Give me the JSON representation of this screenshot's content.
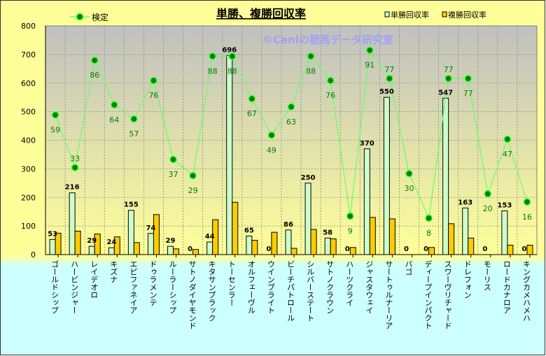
{
  "chart_data": {
    "type": "bar",
    "title": "単勝、複勝回収率",
    "watermark": "©Caniの競馬データ研究室",
    "ylim": [
      0,
      800
    ],
    "yticks": [
      0,
      100,
      200,
      300,
      400,
      500,
      600,
      700,
      800
    ],
    "y2lim": [
      -10,
      103
    ],
    "grid": true,
    "legend_placement": "top",
    "categories": [
      "ゴールドシップ",
      "ハービンジャー",
      "レイデオロ",
      "キズナ",
      "エピファネイア",
      "ドゥラメンテ",
      "ルーラーシップ",
      "サトノダイヤモンド",
      "キタサンブラック",
      "トーセンラー",
      "オルフェーヴル",
      "ウインブライト",
      "ビーチパトロール",
      "シルバーステート",
      "サトノクラウン",
      "ハーツクライ",
      "ジャスタウェイ",
      "サートゥルナーリア",
      "バゴ",
      "ディープインパクト",
      "スワーヴリチャード",
      "ドレフォン",
      "モーリス",
      "ロードカナロア",
      "キングカメハメハ"
    ],
    "series": [
      {
        "name": "単勝回収率",
        "type": "bar",
        "color": "#ccffcc",
        "values": [
          53,
          216,
          29,
          24,
          155,
          74,
          29,
          0,
          44,
          696,
          65,
          0,
          86,
          250,
          58,
          0,
          370,
          550,
          0,
          0,
          547,
          163,
          0,
          153,
          0
        ]
      },
      {
        "name": "複勝回収率",
        "type": "bar",
        "color": "#ffcc00",
        "values": [
          75,
          82,
          72,
          62,
          42,
          140,
          20,
          18,
          122,
          183,
          50,
          78,
          22,
          88,
          55,
          25,
          130,
          125,
          0,
          25,
          108,
          58,
          0,
          33,
          33
        ]
      },
      {
        "name": "検定",
        "type": "line",
        "color": "#66ff66",
        "values": [
          59,
          33,
          86,
          64,
          57,
          76,
          37,
          29,
          88,
          88,
          67,
          49,
          63,
          88,
          76,
          9,
          91,
          77,
          30,
          8,
          77,
          77,
          20,
          47,
          16
        ]
      }
    ]
  }
}
